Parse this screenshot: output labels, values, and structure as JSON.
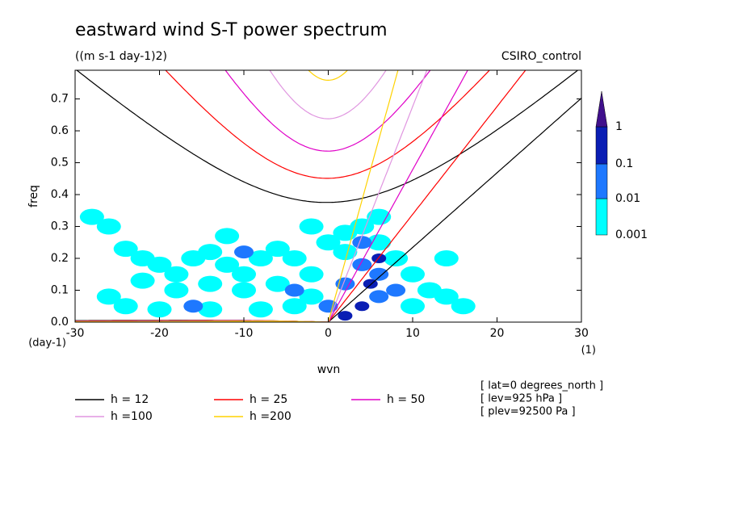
{
  "chart_data": {
    "type": "spectrum",
    "title": "eastward wind S-T power spectrum",
    "subtitle": "((m s-1 day-1)2)",
    "model": "CSIRO_control",
    "x_label": "wvn",
    "y_label": "freq",
    "y_unit": "(day-1)",
    "x_unit": "(1)",
    "notes": [
      "[ lat=0 degrees_north ]",
      "[ lev=925 hPa ]",
      "[ plev=92500 Pa ]"
    ],
    "xlim": [
      -30,
      30
    ],
    "xticks": [
      -30,
      -20,
      -10,
      0,
      10,
      20,
      30
    ],
    "ylim": [
      0,
      0.79
    ],
    "yticks": [
      {
        "value": 0,
        "label": "0.0"
      },
      0.1,
      0.2,
      0.3,
      0.4,
      0.5,
      0.6,
      0.7
    ],
    "levels": [
      0.001,
      0.01,
      0.1,
      1
    ],
    "level_colors": [
      "#00ffff",
      "#1e78ff",
      "#0a1eb4",
      "#40108c"
    ],
    "series": [
      {
        "name": "h = 12",
        "h": 12,
        "color": "#000000"
      },
      {
        "name": "h = 25",
        "h": 25,
        "color": "#ff0000"
      },
      {
        "name": "h = 50",
        "h": 50,
        "color": "#e000c8"
      },
      {
        "name": "h =100",
        "h": 100,
        "color": "#e096e0"
      },
      {
        "name": "h =200",
        "h": 200,
        "color": "#ffd200"
      }
    ],
    "field": [
      [
        -28,
        0.33,
        0.003
      ],
      [
        -26,
        0.3,
        0.003
      ],
      [
        -24,
        0.23,
        0.003
      ],
      [
        -22,
        0.2,
        0.003
      ],
      [
        -20,
        0.18,
        0.003
      ],
      [
        -18,
        0.15,
        0.003
      ],
      [
        -16,
        0.2,
        0.003
      ],
      [
        -14,
        0.22,
        0.003
      ],
      [
        -12,
        0.18,
        0.003
      ],
      [
        -10,
        0.15,
        0.003
      ],
      [
        -8,
        0.2,
        0.003
      ],
      [
        -6,
        0.23,
        0.003
      ],
      [
        -4,
        0.2,
        0.003
      ],
      [
        -2,
        0.15,
        0.003
      ],
      [
        -22,
        0.13,
        0.003
      ],
      [
        -18,
        0.1,
        0.003
      ],
      [
        -14,
        0.12,
        0.003
      ],
      [
        -10,
        0.1,
        0.003
      ],
      [
        -6,
        0.12,
        0.003
      ],
      [
        -2,
        0.08,
        0.003
      ],
      [
        2,
        0.28,
        0.003
      ],
      [
        4,
        0.3,
        0.003
      ],
      [
        2,
        0.22,
        0.003
      ],
      [
        6,
        0.25,
        0.003
      ],
      [
        8,
        0.2,
        0.003
      ],
      [
        10,
        0.15,
        0.003
      ],
      [
        12,
        0.1,
        0.003
      ],
      [
        14,
        0.08,
        0.003
      ],
      [
        16,
        0.05,
        0.003
      ],
      [
        10,
        0.05,
        0.003
      ],
      [
        -26,
        0.08,
        0.003
      ],
      [
        -24,
        0.05,
        0.003
      ],
      [
        -20,
        0.04,
        0.003
      ],
      [
        -14,
        0.04,
        0.003
      ],
      [
        -8,
        0.04,
        0.003
      ],
      [
        -4,
        0.05,
        0.003
      ],
      [
        -12,
        0.27,
        0.003
      ],
      [
        0,
        0.25,
        0.003
      ],
      [
        14,
        0.2,
        0.003
      ],
      [
        -2,
        0.3,
        0.003
      ],
      [
        6,
        0.33,
        0.003
      ],
      [
        4,
        0.18,
        0.02
      ],
      [
        6,
        0.15,
        0.02
      ],
      [
        2,
        0.12,
        0.02
      ],
      [
        6,
        0.08,
        0.02
      ],
      [
        8,
        0.1,
        0.02
      ],
      [
        -4,
        0.1,
        0.02
      ],
      [
        -10,
        0.22,
        0.02
      ],
      [
        0,
        0.05,
        0.02
      ],
      [
        4,
        0.25,
        0.02
      ],
      [
        -16,
        0.05,
        0.02
      ],
      [
        4,
        0.05,
        0.2
      ],
      [
        5,
        0.12,
        0.2
      ],
      [
        2,
        0.02,
        0.2
      ],
      [
        6,
        0.2,
        0.2
      ]
    ]
  }
}
